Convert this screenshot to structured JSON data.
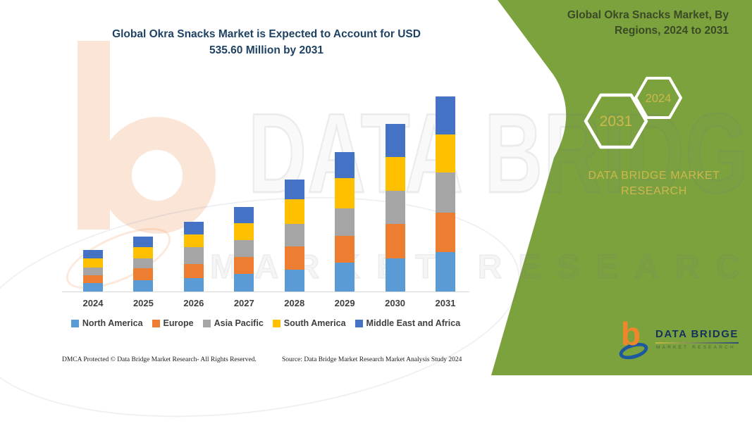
{
  "colors": {
    "green": "#7CA23E",
    "panel_text": "#3A4A26",
    "accent_yellow": "#CDB84B",
    "title_navy": "#1F4264",
    "watermark_peach": "#FBE5D7"
  },
  "chart_data": {
    "type": "bar",
    "stacked": true,
    "title": "Global Okra Snacks Market is Expected to Account for USD\n535.60 Million by 2031",
    "unit": "USD Million",
    "categories": [
      "2024",
      "2025",
      "2026",
      "2027",
      "2028",
      "2029",
      "2030",
      "2031"
    ],
    "series": [
      {
        "name": "North America",
        "color": "#5B9BD5",
        "values": [
          23.2,
          30.9,
          36.7,
          48.3,
          59.9,
          79.3,
          90.9,
          108.3
        ]
      },
      {
        "name": "Europe",
        "color": "#ED7D31",
        "values": [
          21.3,
          32.9,
          38.7,
          46.4,
          63.8,
          73.5,
          94.7,
          108.3
        ]
      },
      {
        "name": "Asia Pacific",
        "color": "#A5A5A5",
        "values": [
          21.3,
          27.1,
          46.4,
          46.4,
          61.9,
          75.4,
          90.9,
          110.2
        ]
      },
      {
        "name": "South America",
        "color": "#FFC000",
        "values": [
          25.1,
          30.9,
          34.8,
          46.4,
          67.7,
          83.1,
          92.8,
          104.4
        ]
      },
      {
        "name": "Middle East and Africa",
        "color": "#4472C4",
        "values": [
          23.2,
          29.0,
          34.8,
          44.5,
          54.1,
          71.5,
          90.9,
          104.4
        ]
      }
    ],
    "totals_note": "2031 total = 535.60 Million",
    "grid": false,
    "y_axis_visible": false,
    "legend_position": "bottom"
  },
  "side_panel": {
    "title": "Global Okra Snacks Market, By\nRegions, 2024 to 2031",
    "hexagons": [
      {
        "label": "2031"
      },
      {
        "label": "2024"
      }
    ],
    "brand_text": "DATA BRIDGE MARKET\nRESEARCH"
  },
  "watermark": {
    "text_primary": "DATA BRIDGE",
    "text_secondary": "MARKET RESEARCH"
  },
  "logo": {
    "glyph": "b",
    "brand": "DATA BRIDGE",
    "sub": "MARKET RESEARCH"
  },
  "footer": {
    "left": "DMCA Protected © Data Bridge Market Research-  All Rights Reserved.",
    "source": "Source: Data Bridge Market Research  Market Analysis Study 2024"
  }
}
